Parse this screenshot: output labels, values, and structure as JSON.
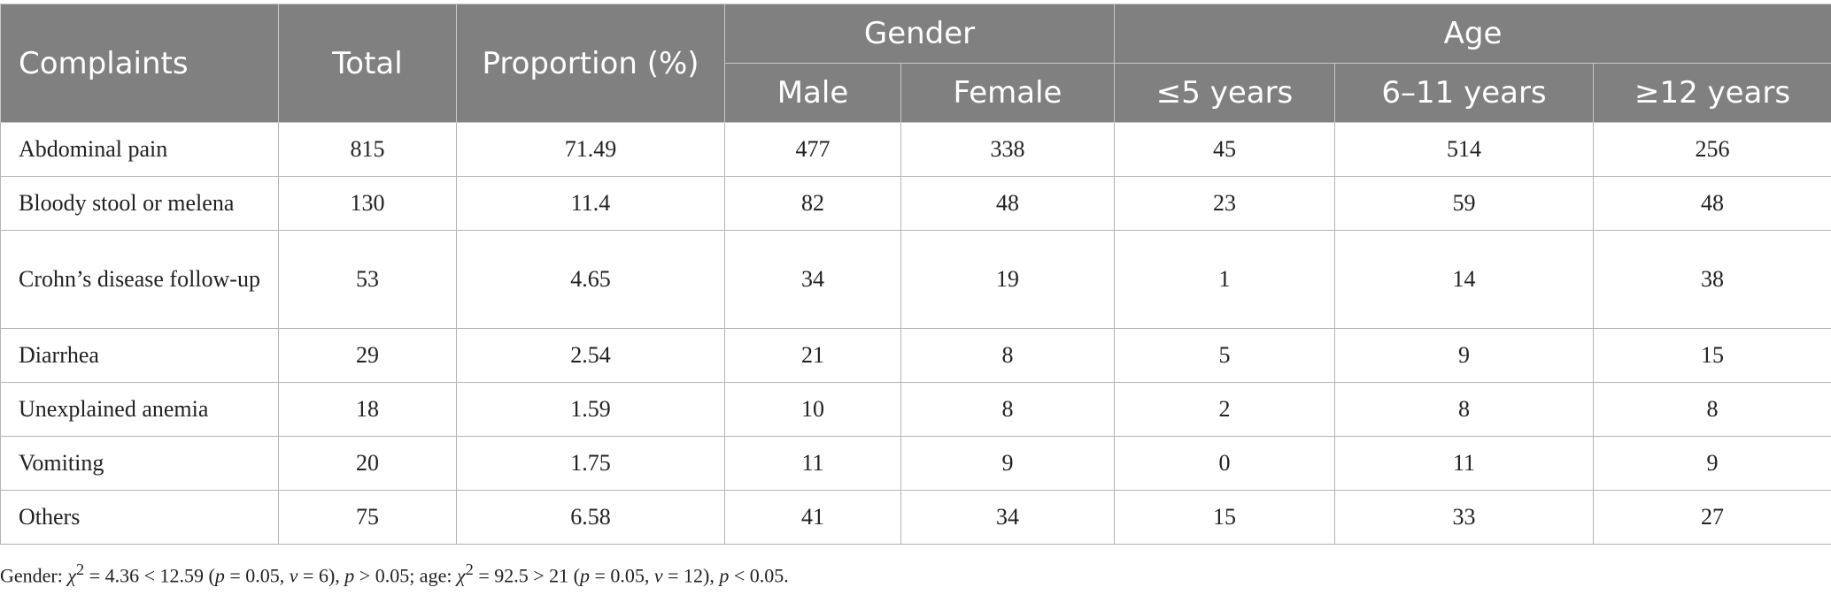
{
  "table": {
    "headers": {
      "complaints": "Complaints",
      "total": "Total",
      "proportion": "Proportion (%)",
      "gender": "Gender",
      "age": "Age",
      "male": "Male",
      "female": "Female",
      "age_le5": "≤5 years",
      "age_6_11": "6–11 years",
      "age_ge12": "≥12 years"
    },
    "rows": [
      {
        "complaint": "Abdominal pain",
        "total": "815",
        "proportion": "71.49",
        "male": "477",
        "female": "338",
        "age_le5": "45",
        "age_6_11": "514",
        "age_ge12": "256"
      },
      {
        "complaint": "Bloody stool or melena",
        "total": "130",
        "proportion": "11.4",
        "male": "82",
        "female": "48",
        "age_le5": "23",
        "age_6_11": "59",
        "age_ge12": "48"
      },
      {
        "complaint": "Crohn’s disease follow-up",
        "total": "53",
        "proportion": "4.65",
        "male": "34",
        "female": "19",
        "age_le5": "1",
        "age_6_11": "14",
        "age_ge12": "38"
      },
      {
        "complaint": "Diarrhea",
        "total": "29",
        "proportion": "2.54",
        "male": "21",
        "female": "8",
        "age_le5": "5",
        "age_6_11": "9",
        "age_ge12": "15"
      },
      {
        "complaint": "Unexplained anemia",
        "total": "18",
        "proportion": "1.59",
        "male": "10",
        "female": "8",
        "age_le5": "2",
        "age_6_11": "8",
        "age_ge12": "8"
      },
      {
        "complaint": "Vomiting",
        "total": "20",
        "proportion": "1.75",
        "male": "11",
        "female": "9",
        "age_le5": "0",
        "age_6_11": "11",
        "age_ge12": "9"
      },
      {
        "complaint": "Others",
        "total": "75",
        "proportion": "6.58",
        "male": "41",
        "female": "34",
        "age_le5": "15",
        "age_6_11": "33",
        "age_ge12": "27"
      }
    ]
  },
  "footnote": {
    "gender_label": "Gender: ",
    "chi": "χ",
    "sq": "2",
    "gender_stat": " = 4.36 < 12.59 (",
    "p": "p",
    "p_eq": " = 0.05, ",
    "nu": "ν",
    "gender_df": " = 6), ",
    "gender_p": " > 0.05; age: ",
    "age_stat": " = 92.5 > 21 (",
    "age_df": " = 12), ",
    "age_p": " < 0.05."
  },
  "colors": {
    "header_background": "#808080",
    "header_text": "#ffffff",
    "grid_line": "#b4b4b4"
  }
}
